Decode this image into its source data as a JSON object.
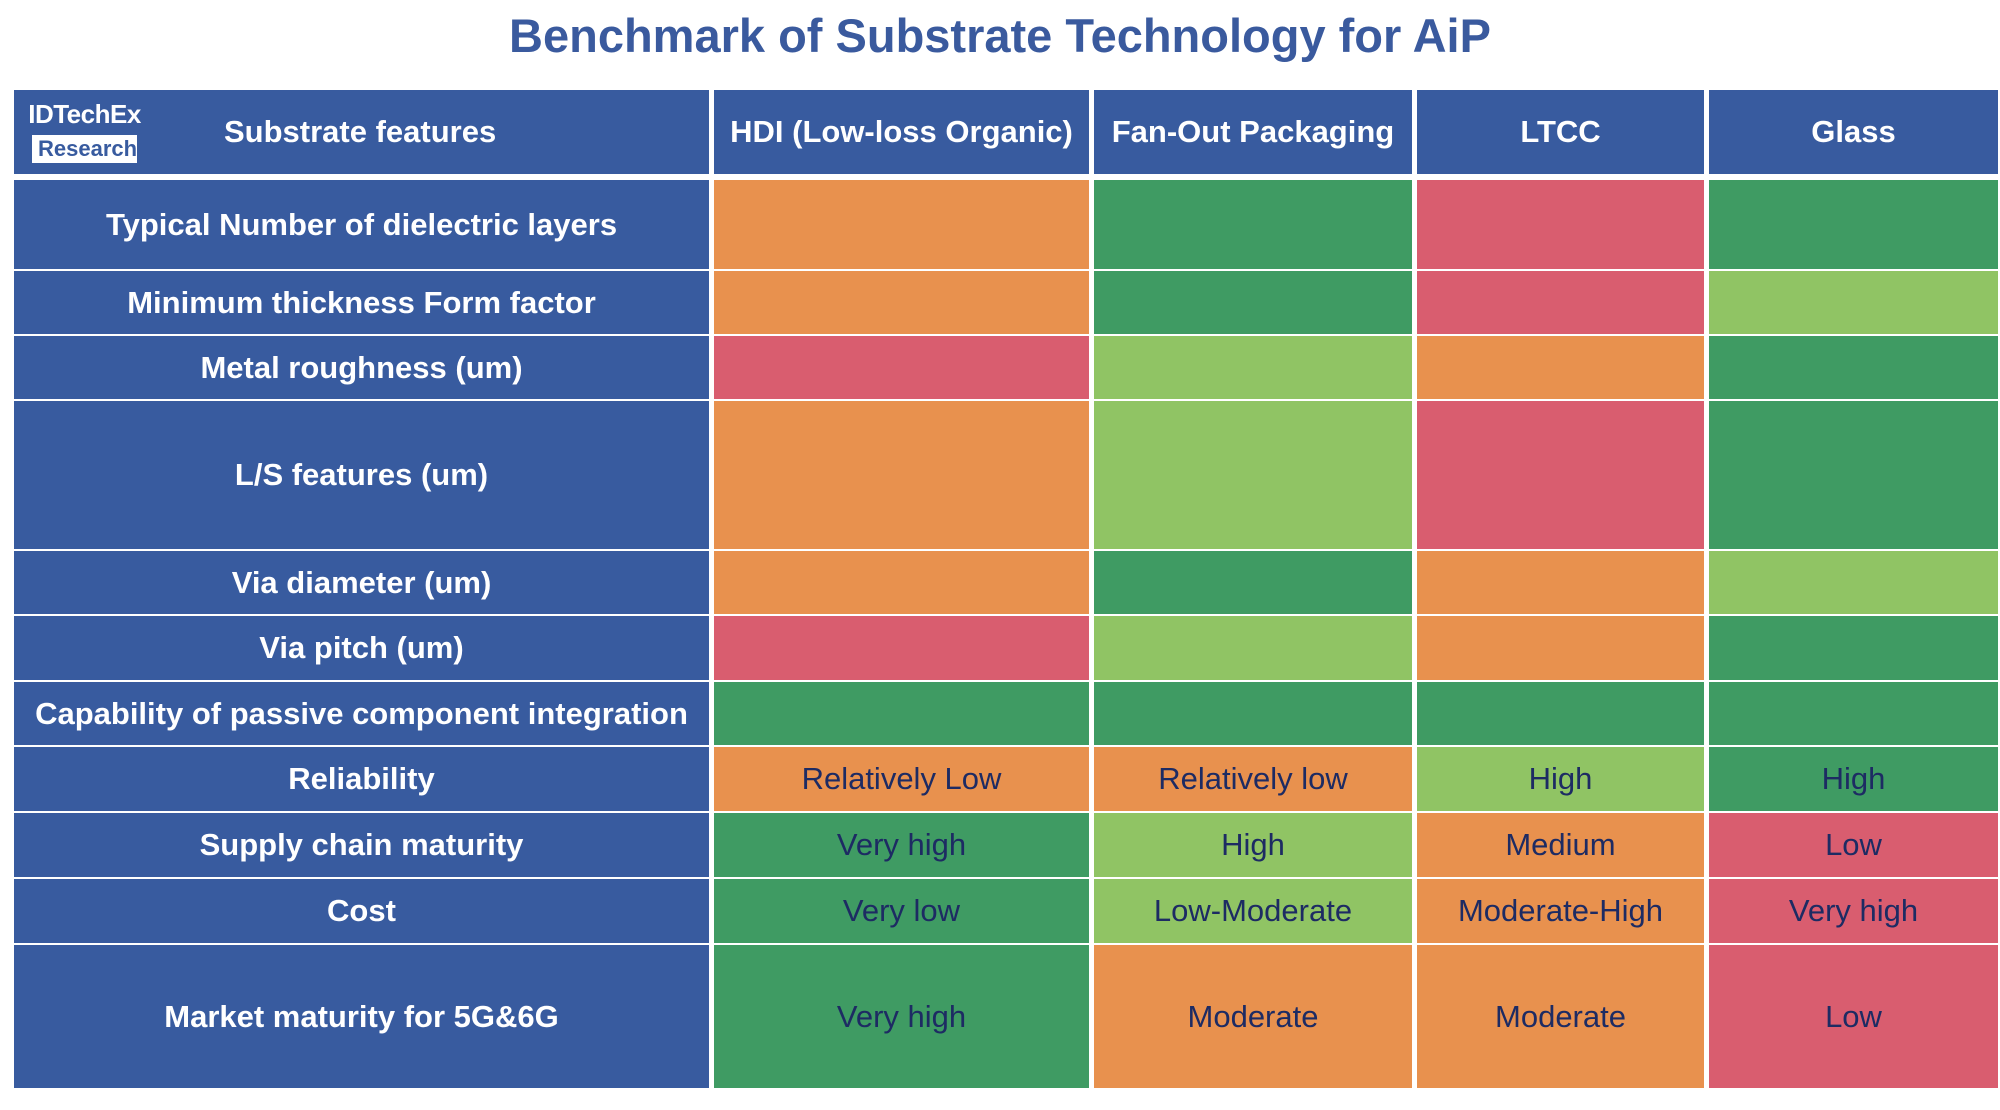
{
  "title": "Benchmark of Substrate Technology for AiP",
  "logo": {
    "line1": "IDTechEx",
    "line2": "Research"
  },
  "header": {
    "corner_label": "Substrate features",
    "columns": [
      "HDI (Low-loss Organic)",
      "Fan-Out Packaging",
      "LTCC",
      "Glass"
    ]
  },
  "colors": {
    "header_blue": "#385b9f",
    "orange": "#e8914e",
    "dark_green": "#3f9b63",
    "red": "#d95d6f",
    "light_green": "#90c464",
    "value_text": "#1d2b63"
  },
  "rows": [
    {
      "label": "Typical Number of dielectric layers",
      "cells": [
        {
          "color": "orange",
          "text": ""
        },
        {
          "color": "dark_green",
          "text": ""
        },
        {
          "color": "red",
          "text": ""
        },
        {
          "color": "dark_green",
          "text": ""
        }
      ]
    },
    {
      "label": "Minimum thickness Form factor",
      "cells": [
        {
          "color": "orange",
          "text": ""
        },
        {
          "color": "dark_green",
          "text": ""
        },
        {
          "color": "red",
          "text": ""
        },
        {
          "color": "light_green",
          "text": ""
        }
      ]
    },
    {
      "label": "Metal roughness (um)",
      "cells": [
        {
          "color": "red",
          "text": ""
        },
        {
          "color": "light_green",
          "text": ""
        },
        {
          "color": "orange",
          "text": ""
        },
        {
          "color": "dark_green",
          "text": ""
        }
      ]
    },
    {
      "label": "L/S features (um)",
      "cells": [
        {
          "color": "orange",
          "text": ""
        },
        {
          "color": "light_green",
          "text": ""
        },
        {
          "color": "red",
          "text": ""
        },
        {
          "color": "dark_green",
          "text": ""
        }
      ]
    },
    {
      "label": "Via diameter (um)",
      "cells": [
        {
          "color": "orange",
          "text": ""
        },
        {
          "color": "dark_green",
          "text": ""
        },
        {
          "color": "orange",
          "text": ""
        },
        {
          "color": "light_green",
          "text": ""
        }
      ]
    },
    {
      "label": "Via pitch (um)",
      "cells": [
        {
          "color": "red",
          "text": ""
        },
        {
          "color": "light_green",
          "text": ""
        },
        {
          "color": "orange",
          "text": ""
        },
        {
          "color": "dark_green",
          "text": ""
        }
      ]
    },
    {
      "label": "Capability of passive component integration",
      "cells": [
        {
          "color": "dark_green",
          "text": ""
        },
        {
          "color": "dark_green",
          "text": ""
        },
        {
          "color": "dark_green",
          "text": ""
        },
        {
          "color": "dark_green",
          "text": ""
        }
      ]
    },
    {
      "label": "Reliability",
      "cells": [
        {
          "color": "orange",
          "text": "Relatively Low"
        },
        {
          "color": "orange",
          "text": "Relatively low"
        },
        {
          "color": "light_green",
          "text": "High"
        },
        {
          "color": "dark_green",
          "text": "High"
        }
      ]
    },
    {
      "label": "Supply chain maturity",
      "cells": [
        {
          "color": "dark_green",
          "text": "Very high"
        },
        {
          "color": "light_green",
          "text": "High"
        },
        {
          "color": "orange",
          "text": "Medium"
        },
        {
          "color": "red",
          "text": "Low"
        }
      ]
    },
    {
      "label": "Cost",
      "cells": [
        {
          "color": "dark_green",
          "text": "Very low"
        },
        {
          "color": "light_green",
          "text": "Low-Moderate"
        },
        {
          "color": "orange",
          "text": "Moderate-High"
        },
        {
          "color": "red",
          "text": "Very high"
        }
      ]
    },
    {
      "label": "Market maturity for 5G&6G",
      "cells": [
        {
          "color": "dark_green",
          "text": "Very high"
        },
        {
          "color": "orange",
          "text": "Moderate"
        },
        {
          "color": "orange",
          "text": "Moderate"
        },
        {
          "color": "red",
          "text": "Low"
        }
      ]
    }
  ]
}
